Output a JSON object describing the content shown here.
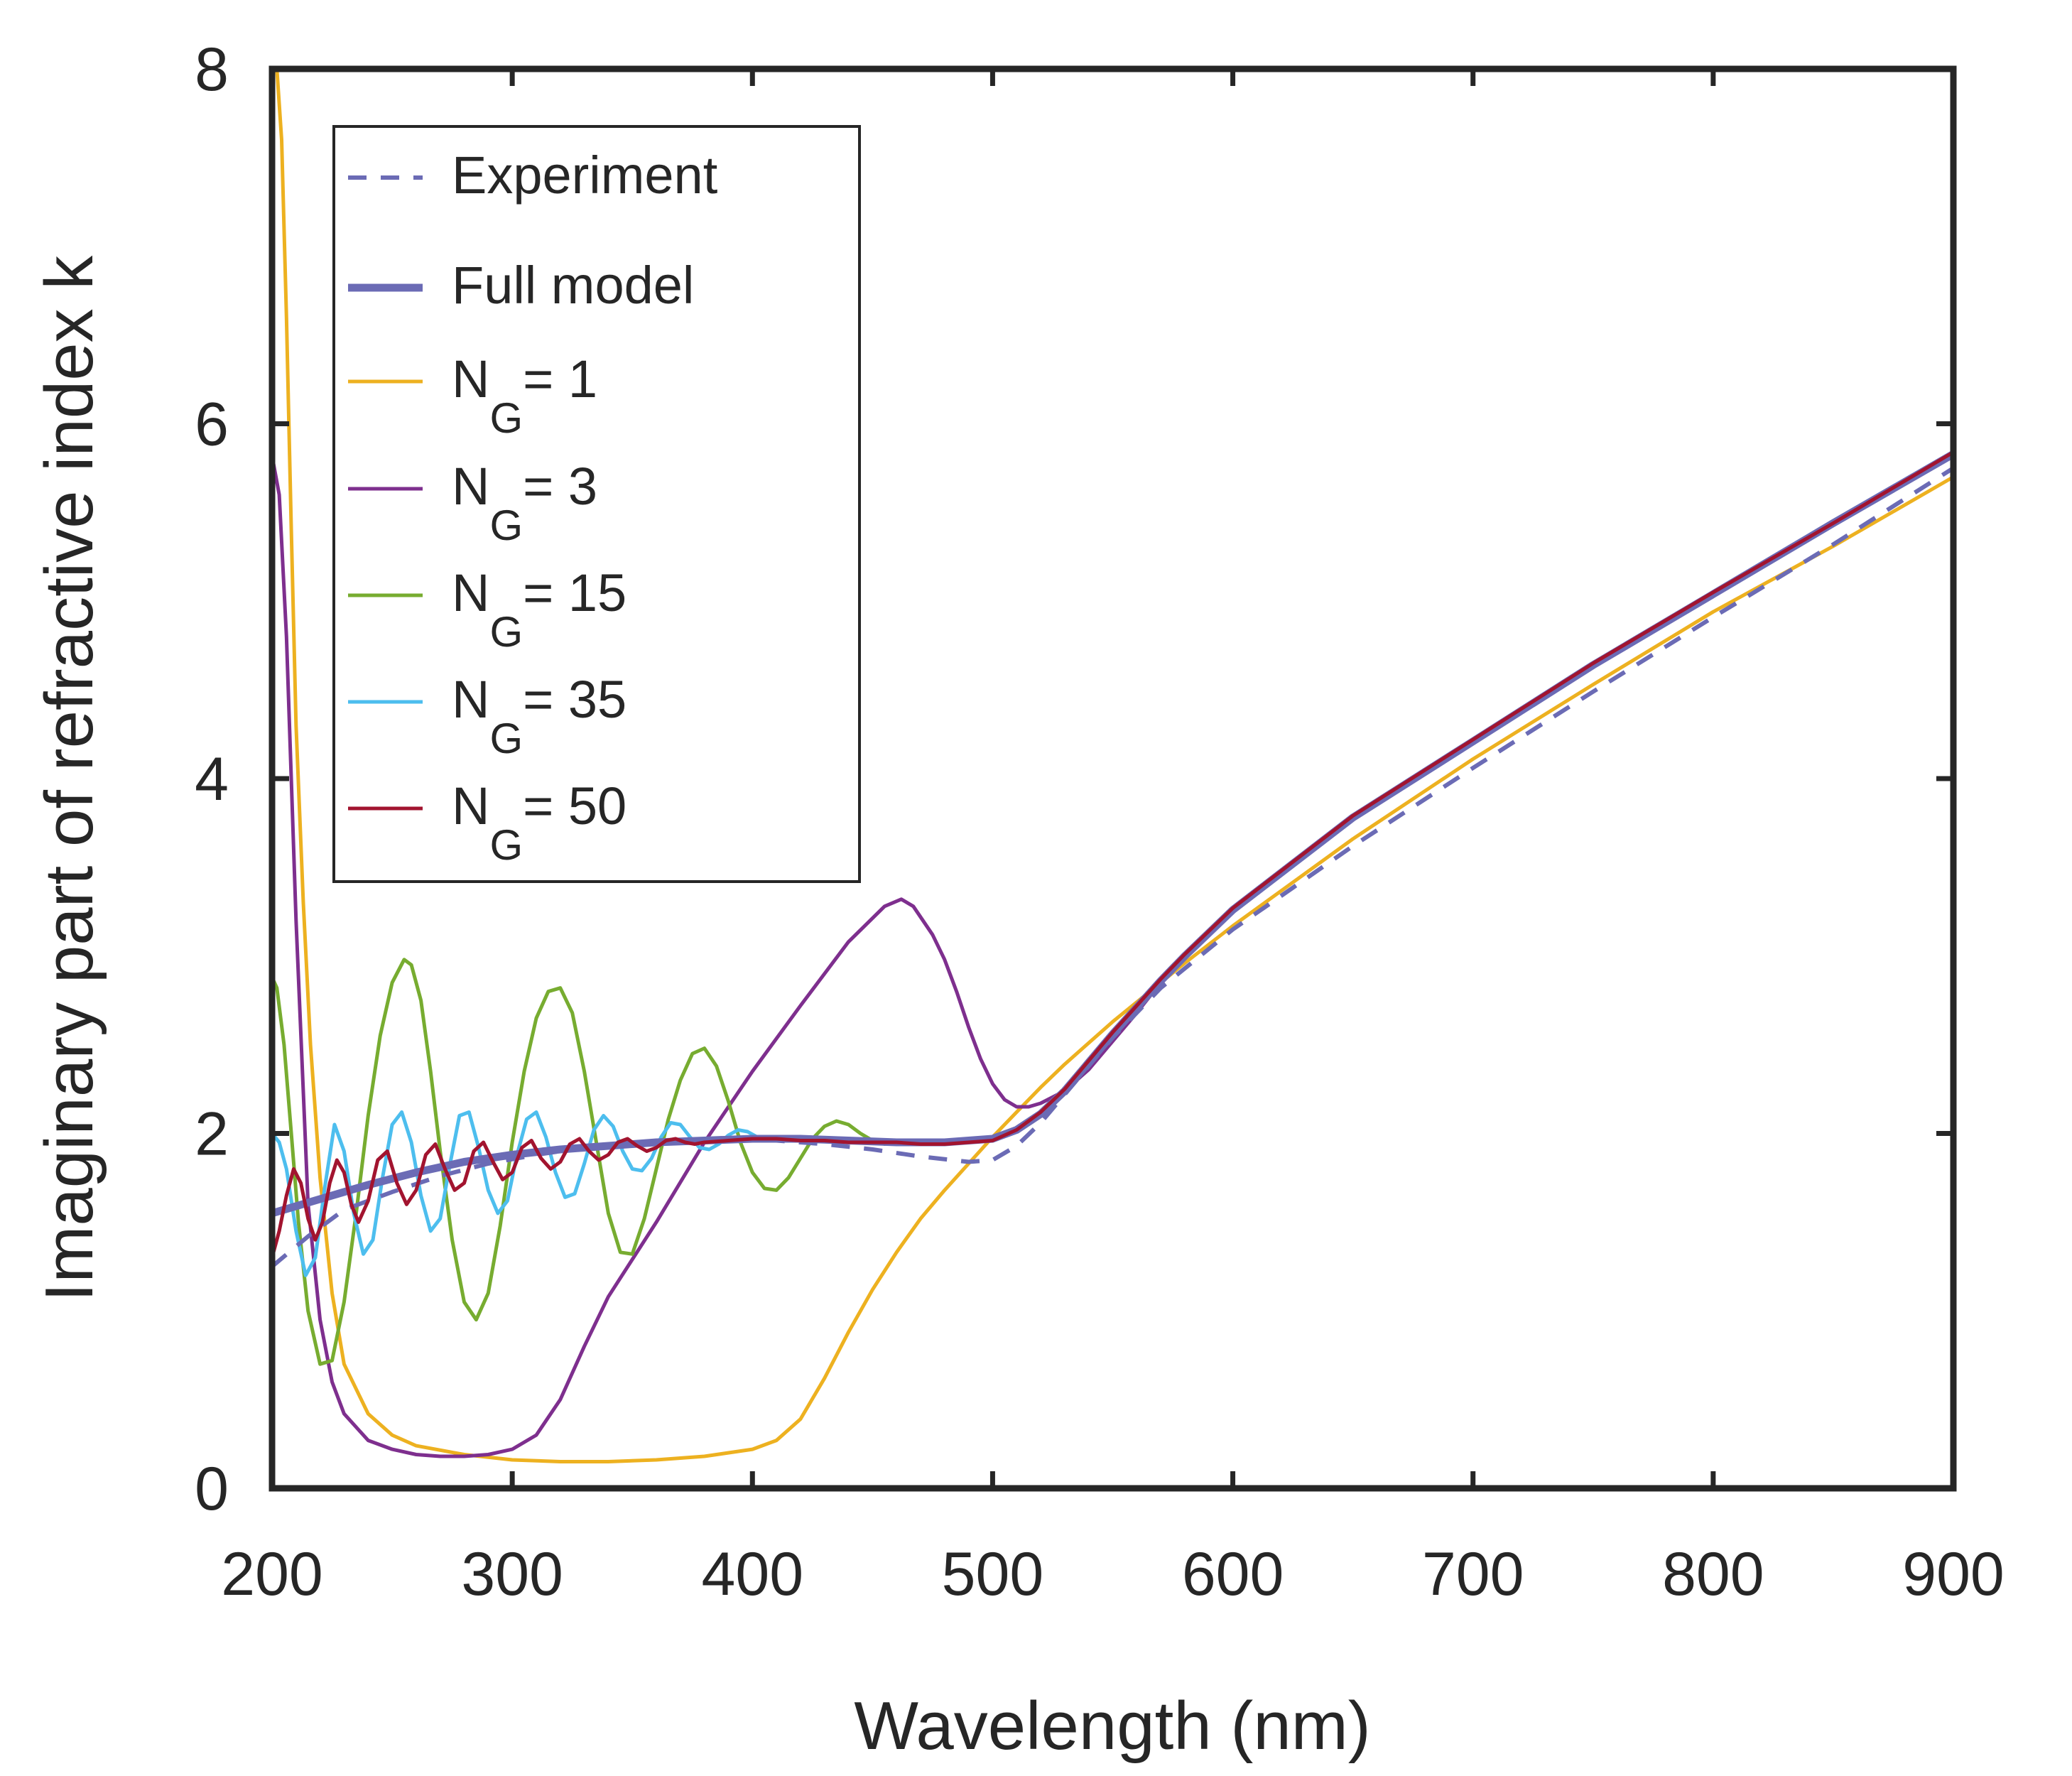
{
  "chart_data": {
    "type": "line",
    "title": "",
    "xlabel": "Wavelength (nm)",
    "ylabel": "Imaginary part of refractive index k",
    "xlim": [
      200,
      900
    ],
    "ylim": [
      0,
      8
    ],
    "xticks": [
      200,
      300,
      400,
      500,
      600,
      700,
      800,
      900
    ],
    "yticks": [
      0,
      2,
      4,
      6,
      8
    ],
    "grid": false,
    "legend_position": "top-left",
    "series": [
      {
        "name": "Experiment",
        "label_main": "Experiment",
        "label_sub": "",
        "label_value": "",
        "color": "#6b6bb5",
        "style": "dashed",
        "width": 6,
        "x": [
          200,
          215,
          230,
          250,
          270,
          290,
          310,
          330,
          350,
          370,
          390,
          410,
          430,
          450,
          470,
          490,
          500,
          510,
          520,
          530,
          540,
          550,
          570,
          600,
          650,
          700,
          750,
          800,
          850,
          900
        ],
        "y": [
          1.25,
          1.42,
          1.57,
          1.67,
          1.76,
          1.83,
          1.88,
          1.92,
          1.94,
          1.95,
          1.96,
          1.96,
          1.94,
          1.91,
          1.87,
          1.84,
          1.85,
          1.93,
          2.06,
          2.22,
          2.38,
          2.54,
          2.82,
          3.15,
          3.62,
          4.06,
          4.49,
          4.91,
          5.32,
          5.75
        ]
      },
      {
        "name": "Full model",
        "label_main": "Full model",
        "label_sub": "",
        "label_value": "",
        "color": "#6b6bb5",
        "style": "solid",
        "width": 11,
        "x": [
          200,
          220,
          240,
          260,
          280,
          300,
          320,
          340,
          360,
          380,
          400,
          420,
          440,
          460,
          480,
          500,
          510,
          520,
          530,
          540,
          550,
          560,
          570,
          580,
          600,
          650,
          700,
          750,
          800,
          850,
          900
        ],
        "y": [
          1.55,
          1.63,
          1.71,
          1.78,
          1.84,
          1.88,
          1.91,
          1.93,
          1.95,
          1.96,
          1.97,
          1.97,
          1.96,
          1.95,
          1.95,
          1.97,
          2.02,
          2.11,
          2.24,
          2.4,
          2.56,
          2.71,
          2.86,
          3.0,
          3.26,
          3.78,
          4.21,
          4.64,
          5.04,
          5.44,
          5.83
        ]
      },
      {
        "name": "N_G = 1",
        "label_main": "N",
        "label_sub": "G",
        "label_value": "= 1",
        "color": "#edb120",
        "style": "solid",
        "width": 5,
        "x": [
          202,
          204,
          206,
          208,
          210,
          213,
          216,
          220,
          225,
          230,
          240,
          250,
          260,
          280,
          300,
          320,
          340,
          360,
          380,
          400,
          410,
          420,
          430,
          440,
          450,
          460,
          470,
          480,
          490,
          500,
          510,
          520,
          530,
          540,
          550,
          560,
          570,
          580,
          600,
          650,
          700,
          750,
          800,
          850,
          900
        ],
        "y": [
          8.0,
          7.6,
          6.6,
          5.4,
          4.3,
          3.3,
          2.5,
          1.75,
          1.1,
          0.7,
          0.42,
          0.3,
          0.24,
          0.19,
          0.16,
          0.15,
          0.15,
          0.16,
          0.18,
          0.22,
          0.27,
          0.39,
          0.62,
          0.88,
          1.12,
          1.33,
          1.52,
          1.68,
          1.83,
          1.98,
          2.12,
          2.26,
          2.39,
          2.51,
          2.63,
          2.74,
          2.85,
          2.96,
          3.17,
          3.66,
          4.11,
          4.53,
          4.94,
          5.31,
          5.7
        ]
      },
      {
        "name": "N_G = 3",
        "label_main": "N",
        "label_sub": "G",
        "label_value": "= 3",
        "color": "#7e2f8e",
        "style": "solid",
        "width": 5,
        "x": [
          200,
          203,
          206,
          210,
          215,
          220,
          225,
          230,
          240,
          250,
          260,
          270,
          280,
          290,
          300,
          310,
          320,
          330,
          340,
          360,
          380,
          400,
          420,
          440,
          455,
          462,
          467,
          475,
          480,
          485,
          490,
          495,
          500,
          505,
          510,
          515,
          520,
          530,
          540,
          550,
          560,
          570,
          580,
          600,
          650,
          700,
          750,
          800,
          850,
          900
        ],
        "y": [
          5.82,
          5.6,
          4.8,
          3.2,
          1.6,
          0.95,
          0.6,
          0.42,
          0.27,
          0.22,
          0.19,
          0.18,
          0.18,
          0.19,
          0.22,
          0.3,
          0.5,
          0.8,
          1.08,
          1.5,
          1.95,
          2.35,
          2.72,
          3.08,
          3.28,
          3.32,
          3.28,
          3.12,
          2.98,
          2.8,
          2.6,
          2.42,
          2.28,
          2.19,
          2.15,
          2.15,
          2.17,
          2.24,
          2.36,
          2.52,
          2.68,
          2.85,
          3.0,
          3.27,
          3.79,
          4.22,
          4.65,
          5.05,
          5.44,
          5.83
        ]
      },
      {
        "name": "N_G = 15",
        "label_main": "N",
        "label_sub": "G",
        "label_value": "= 15",
        "color": "#77ac30",
        "style": "solid",
        "width": 5,
        "x": [
          200,
          202,
          205,
          208,
          211,
          215,
          220,
          225,
          230,
          235,
          240,
          245,
          250,
          255,
          258,
          262,
          266,
          270,
          275,
          280,
          285,
          290,
          295,
          300,
          305,
          310,
          315,
          320,
          325,
          330,
          335,
          340,
          345,
          350,
          355,
          360,
          365,
          370,
          375,
          380,
          385,
          390,
          395,
          400,
          405,
          410,
          415,
          420,
          425,
          430,
          435,
          440,
          445,
          450,
          455,
          460,
          465,
          470,
          475,
          480,
          485,
          490,
          495,
          500,
          510,
          520,
          530,
          540,
          550,
          560,
          570,
          580,
          600,
          650,
          700,
          750,
          800,
          850,
          900
        ],
        "y": [
          2.88,
          2.82,
          2.5,
          2.0,
          1.5,
          1.0,
          0.7,
          0.72,
          1.05,
          1.55,
          2.1,
          2.55,
          2.85,
          2.98,
          2.95,
          2.75,
          2.35,
          1.9,
          1.4,
          1.05,
          0.95,
          1.1,
          1.48,
          1.95,
          2.35,
          2.65,
          2.8,
          2.82,
          2.68,
          2.35,
          1.95,
          1.55,
          1.33,
          1.32,
          1.52,
          1.8,
          2.08,
          2.3,
          2.45,
          2.48,
          2.38,
          2.18,
          1.95,
          1.78,
          1.69,
          1.68,
          1.75,
          1.86,
          1.97,
          2.04,
          2.07,
          2.05,
          2.0,
          1.96,
          1.94,
          1.95,
          1.96,
          1.96,
          1.95,
          1.94,
          1.95,
          1.96,
          1.97,
          1.98,
          2.03,
          2.12,
          2.25,
          2.4,
          2.56,
          2.71,
          2.86,
          3.0,
          3.26,
          3.78,
          4.21,
          4.64,
          5.04,
          5.44,
          5.83
        ]
      },
      {
        "name": "N_G = 35",
        "label_main": "N",
        "label_sub": "G",
        "label_value": "= 35",
        "color": "#4dbeee",
        "style": "solid",
        "width": 5,
        "x": [
          200,
          203,
          206,
          210,
          214,
          218,
          222,
          226,
          230,
          234,
          238,
          242,
          246,
          250,
          254,
          258,
          262,
          266,
          270,
          274,
          278,
          282,
          286,
          290,
          294,
          298,
          302,
          306,
          310,
          314,
          318,
          322,
          326,
          330,
          334,
          338,
          342,
          346,
          350,
          354,
          358,
          362,
          366,
          370,
          374,
          378,
          382,
          386,
          390,
          394,
          398,
          402,
          406,
          410,
          414,
          418,
          422,
          426,
          430,
          440,
          450,
          460,
          470,
          480,
          490,
          500,
          510,
          520,
          530,
          540,
          550,
          560,
          570,
          580,
          600,
          650,
          700,
          750,
          800,
          850,
          900
        ],
        "y": [
          2.0,
          1.95,
          1.8,
          1.45,
          1.2,
          1.3,
          1.7,
          2.05,
          1.9,
          1.55,
          1.32,
          1.4,
          1.75,
          2.05,
          2.12,
          1.95,
          1.65,
          1.45,
          1.52,
          1.82,
          2.1,
          2.12,
          1.92,
          1.68,
          1.55,
          1.62,
          1.88,
          2.08,
          2.12,
          1.98,
          1.78,
          1.64,
          1.66,
          1.83,
          2.02,
          2.1,
          2.04,
          1.9,
          1.8,
          1.79,
          1.86,
          1.98,
          2.06,
          2.05,
          1.98,
          1.92,
          1.91,
          1.94,
          1.99,
          2.02,
          2.01,
          1.98,
          1.96,
          1.96,
          1.97,
          1.98,
          1.98,
          1.97,
          1.96,
          1.95,
          1.95,
          1.95,
          1.95,
          1.95,
          1.96,
          1.97,
          2.02,
          2.11,
          2.24,
          2.4,
          2.56,
          2.71,
          2.86,
          3.0,
          3.26,
          3.78,
          4.21,
          4.64,
          5.04,
          5.44,
          5.83
        ]
      },
      {
        "name": "N_G = 50",
        "label_main": "N",
        "label_sub": "G",
        "label_value": "= 50",
        "color": "#a2142f",
        "style": "solid",
        "width": 5,
        "x": [
          200,
          203,
          206,
          209,
          212,
          215,
          218,
          221,
          224,
          227,
          230,
          233,
          236,
          240,
          244,
          248,
          252,
          256,
          260,
          264,
          268,
          272,
          276,
          280,
          284,
          288,
          292,
          296,
          300,
          304,
          308,
          312,
          316,
          320,
          324,
          328,
          332,
          336,
          340,
          344,
          348,
          352,
          356,
          360,
          364,
          368,
          372,
          376,
          380,
          390,
          400,
          410,
          420,
          430,
          440,
          450,
          460,
          470,
          480,
          490,
          500,
          510,
          520,
          530,
          540,
          550,
          560,
          570,
          580,
          600,
          650,
          700,
          750,
          800,
          850,
          900
        ],
        "y": [
          1.3,
          1.45,
          1.65,
          1.8,
          1.72,
          1.52,
          1.4,
          1.5,
          1.72,
          1.85,
          1.78,
          1.6,
          1.5,
          1.62,
          1.85,
          1.9,
          1.72,
          1.6,
          1.68,
          1.88,
          1.94,
          1.8,
          1.68,
          1.72,
          1.9,
          1.95,
          1.84,
          1.74,
          1.78,
          1.92,
          1.96,
          1.86,
          1.8,
          1.84,
          1.94,
          1.97,
          1.9,
          1.85,
          1.88,
          1.95,
          1.97,
          1.93,
          1.9,
          1.92,
          1.96,
          1.97,
          1.95,
          1.94,
          1.95,
          1.96,
          1.97,
          1.97,
          1.96,
          1.96,
          1.95,
          1.95,
          1.95,
          1.94,
          1.94,
          1.95,
          1.96,
          2.02,
          2.12,
          2.25,
          2.41,
          2.57,
          2.72,
          2.87,
          3.01,
          3.27,
          3.79,
          4.22,
          4.65,
          5.05,
          5.44,
          5.84
        ]
      }
    ]
  }
}
